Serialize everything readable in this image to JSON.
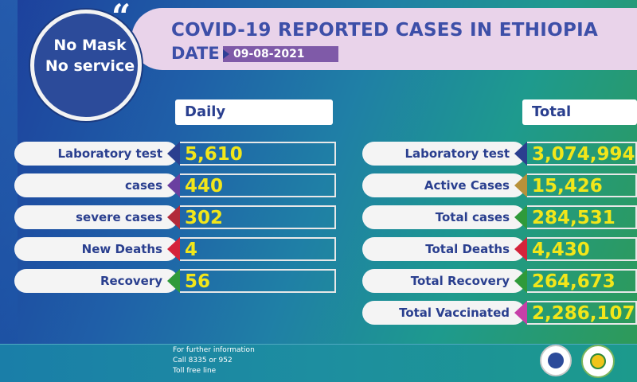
{
  "header": {
    "title": "COVID-19 REPORTED CASES IN ETHIOPIA",
    "date_label": "DATE",
    "date_value": "09-08-2021"
  },
  "badge": {
    "line1": "No Mask",
    "line2": "No service",
    "quote": "“"
  },
  "daily": {
    "heading": "Daily",
    "rows": [
      {
        "label": "Laboratory test",
        "value": "5,610",
        "color": "#2b3f8f"
      },
      {
        "label": "cases",
        "value": "440",
        "color": "#6a3fa0"
      },
      {
        "label": "severe cases",
        "value": "302",
        "color": "#b22a3a"
      },
      {
        "label": "New Deaths",
        "value": "4",
        "color": "#d5233a"
      },
      {
        "label": "Recovery",
        "value": "56",
        "color": "#2f9a3a"
      }
    ]
  },
  "total": {
    "heading": "Total",
    "rows": [
      {
        "label": "Laboratory test",
        "value": "3,074,994",
        "color": "#2b3f8f"
      },
      {
        "label": "Active Cases",
        "value": "15,426",
        "color": "#b8913a"
      },
      {
        "label": "Total cases",
        "value": "284,531",
        "color": "#2f9a3a"
      },
      {
        "label": "Total Deaths",
        "value": "4,430",
        "color": "#d5233a"
      },
      {
        "label": "Total Recovery",
        "value": "264,673",
        "color": "#2f9a3a"
      },
      {
        "label": "Total Vaccinated",
        "value": "2,286,107",
        "color": "#c63fa8"
      }
    ]
  },
  "footer": {
    "line1": "For further information",
    "line2": "Call 8335 or 952",
    "line3": "Toll free line"
  }
}
